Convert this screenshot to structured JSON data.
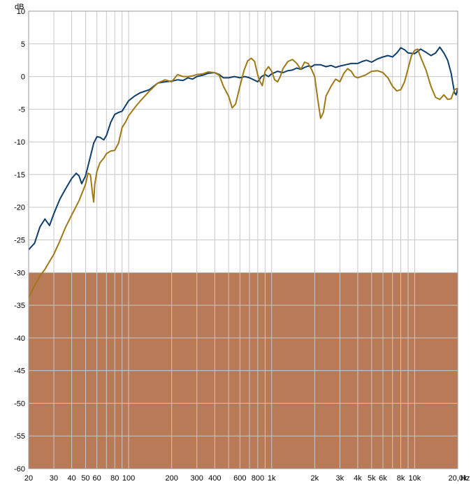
{
  "chart_data": {
    "type": "line",
    "x_scale": "log",
    "x_unit": "Hz",
    "y_unit": "dB",
    "xlim": [
      20,
      20000
    ],
    "ylim": [
      -60,
      10
    ],
    "grid": true,
    "y_ticks": [
      10,
      5,
      0,
      -5,
      -10,
      -15,
      -20,
      -25,
      -30,
      -35,
      -40,
      -45,
      -50,
      -55,
      -60
    ],
    "x_ticks": [
      {
        "value": 20,
        "label": "20"
      },
      {
        "value": 30,
        "label": "30"
      },
      {
        "value": 40,
        "label": "40"
      },
      {
        "value": 50,
        "label": "50"
      },
      {
        "value": 60,
        "label": "60"
      },
      {
        "value": 80,
        "label": "80"
      },
      {
        "value": 100,
        "label": "100"
      },
      {
        "value": 200,
        "label": "200"
      },
      {
        "value": 300,
        "label": "300"
      },
      {
        "value": 400,
        "label": "400"
      },
      {
        "value": 600,
        "label": "600"
      },
      {
        "value": 800,
        "label": "800"
      },
      {
        "value": 1000,
        "label": "1k"
      },
      {
        "value": 2000,
        "label": "2k"
      },
      {
        "value": 3000,
        "label": "3k"
      },
      {
        "value": 4000,
        "label": "4k"
      },
      {
        "value": 5000,
        "label": "5k"
      },
      {
        "value": 6000,
        "label": "6k"
      },
      {
        "value": 8000,
        "label": "8k"
      },
      {
        "value": 10000,
        "label": "10k"
      },
      {
        "value": 20000,
        "label": "20,0k"
      }
    ],
    "minor_x_gridlines": [
      70,
      90,
      500,
      700,
      900,
      7000,
      9000
    ],
    "shaded_region": {
      "y_from": -60,
      "y_to": -30,
      "color": "#b97a57"
    },
    "series": [
      {
        "color": "#0e3f6e",
        "points": [
          [
            20,
            -26.5
          ],
          [
            22,
            -25.5
          ],
          [
            24,
            -23
          ],
          [
            26,
            -21.8
          ],
          [
            28,
            -22.8
          ],
          [
            30,
            -21
          ],
          [
            33,
            -18.8
          ],
          [
            36,
            -17.3
          ],
          [
            40,
            -15.6
          ],
          [
            43,
            -14.8
          ],
          [
            45,
            -15.2
          ],
          [
            47,
            -16.4
          ],
          [
            50,
            -15.2
          ],
          [
            53,
            -13
          ],
          [
            57,
            -10.2
          ],
          [
            60,
            -9.2
          ],
          [
            63,
            -9.3
          ],
          [
            67,
            -9.7
          ],
          [
            70,
            -9
          ],
          [
            75,
            -7
          ],
          [
            80,
            -5.8
          ],
          [
            85,
            -5.5
          ],
          [
            90,
            -5.3
          ],
          [
            100,
            -3.7
          ],
          [
            110,
            -3
          ],
          [
            120,
            -2.5
          ],
          [
            140,
            -2
          ],
          [
            160,
            -1
          ],
          [
            180,
            -0.8
          ],
          [
            200,
            -0.7
          ],
          [
            220,
            -0.5
          ],
          [
            240,
            -0.6
          ],
          [
            260,
            -0.2
          ],
          [
            280,
            -0.4
          ],
          [
            300,
            0
          ],
          [
            330,
            0.2
          ],
          [
            360,
            0.5
          ],
          [
            400,
            0.6
          ],
          [
            430,
            0.3
          ],
          [
            460,
            -0.2
          ],
          [
            500,
            -0.2
          ],
          [
            550,
            0
          ],
          [
            600,
            -0.2
          ],
          [
            650,
            0
          ],
          [
            700,
            -0.2
          ],
          [
            750,
            -0.5
          ],
          [
            800,
            -0.8
          ],
          [
            850,
            0
          ],
          [
            900,
            0.3
          ],
          [
            950,
            0
          ],
          [
            1000,
            0.4
          ],
          [
            1100,
            0.8
          ],
          [
            1200,
            0.6
          ],
          [
            1300,
            0.9
          ],
          [
            1400,
            1
          ],
          [
            1500,
            1.3
          ],
          [
            1600,
            1.1
          ],
          [
            1700,
            1.4
          ],
          [
            1800,
            1.6
          ],
          [
            1900,
            1.5
          ],
          [
            2000,
            1.8
          ],
          [
            2200,
            1.8
          ],
          [
            2400,
            1.5
          ],
          [
            2600,
            1.7
          ],
          [
            2800,
            1.4
          ],
          [
            3000,
            1.6
          ],
          [
            3300,
            1.8
          ],
          [
            3600,
            2
          ],
          [
            4000,
            2
          ],
          [
            4300,
            2.3
          ],
          [
            4600,
            2.5
          ],
          [
            5000,
            2.2
          ],
          [
            5500,
            2.7
          ],
          [
            6000,
            3
          ],
          [
            6500,
            3.2
          ],
          [
            7000,
            3
          ],
          [
            7500,
            3.6
          ],
          [
            8000,
            4.4
          ],
          [
            8500,
            4.1
          ],
          [
            9000,
            3.6
          ],
          [
            10000,
            3.5
          ],
          [
            11000,
            4.2
          ],
          [
            12000,
            3.7
          ],
          [
            13000,
            3.2
          ],
          [
            14000,
            3.6
          ],
          [
            15000,
            4.5
          ],
          [
            16000,
            3.6
          ],
          [
            17000,
            2.5
          ],
          [
            18000,
            0.5
          ],
          [
            19000,
            -2.5
          ],
          [
            19500,
            -2.8
          ],
          [
            20000,
            -1.8
          ]
        ]
      },
      {
        "color": "#a07816",
        "points": [
          [
            20,
            -33.8
          ],
          [
            22,
            -32
          ],
          [
            24,
            -30.5
          ],
          [
            26,
            -29.5
          ],
          [
            28,
            -28.3
          ],
          [
            30,
            -27.2
          ],
          [
            33,
            -25.2
          ],
          [
            36,
            -23.2
          ],
          [
            40,
            -21.2
          ],
          [
            45,
            -19
          ],
          [
            50,
            -16.5
          ],
          [
            52,
            -14.8
          ],
          [
            54,
            -15
          ],
          [
            56,
            -18
          ],
          [
            57,
            -19.2
          ],
          [
            58,
            -16.5
          ],
          [
            60,
            -14.5
          ],
          [
            63,
            -13.2
          ],
          [
            67,
            -12.5
          ],
          [
            70,
            -11.8
          ],
          [
            75,
            -11.4
          ],
          [
            80,
            -11.3
          ],
          [
            85,
            -10.2
          ],
          [
            90,
            -7.8
          ],
          [
            95,
            -7
          ],
          [
            100,
            -6
          ],
          [
            110,
            -4.8
          ],
          [
            120,
            -3.8
          ],
          [
            140,
            -2.2
          ],
          [
            160,
            -1
          ],
          [
            180,
            -0.5
          ],
          [
            200,
            -0.8
          ],
          [
            220,
            0.3
          ],
          [
            240,
            0
          ],
          [
            260,
            0
          ],
          [
            280,
            0.1
          ],
          [
            300,
            0.3
          ],
          [
            330,
            0.4
          ],
          [
            360,
            0.7
          ],
          [
            400,
            0.6
          ],
          [
            430,
            0.2
          ],
          [
            460,
            -1.5
          ],
          [
            500,
            -3
          ],
          [
            530,
            -4.8
          ],
          [
            560,
            -4.2
          ],
          [
            600,
            -1.5
          ],
          [
            640,
            0.9
          ],
          [
            680,
            2.4
          ],
          [
            720,
            2.8
          ],
          [
            760,
            2.3
          ],
          [
            800,
            0.2
          ],
          [
            830,
            -0.8
          ],
          [
            860,
            -1.4
          ],
          [
            900,
            0.8
          ],
          [
            950,
            1.5
          ],
          [
            1000,
            0.8
          ],
          [
            1050,
            -0.5
          ],
          [
            1100,
            -0.8
          ],
          [
            1150,
            0
          ],
          [
            1200,
            1.2
          ],
          [
            1300,
            2.3
          ],
          [
            1400,
            2.6
          ],
          [
            1500,
            2
          ],
          [
            1600,
            1.1
          ],
          [
            1700,
            2.2
          ],
          [
            1800,
            2
          ],
          [
            1900,
            1.1
          ],
          [
            2000,
            0
          ],
          [
            2100,
            -3.5
          ],
          [
            2200,
            -6.4
          ],
          [
            2300,
            -5.5
          ],
          [
            2400,
            -3
          ],
          [
            2600,
            -1.5
          ],
          [
            2800,
            -0.4
          ],
          [
            3000,
            -0.8
          ],
          [
            3200,
            0.5
          ],
          [
            3400,
            1.2
          ],
          [
            3600,
            0.8
          ],
          [
            3800,
            0
          ],
          [
            4000,
            -0.2
          ],
          [
            4500,
            0.2
          ],
          [
            5000,
            0.8
          ],
          [
            5500,
            0.9
          ],
          [
            6000,
            0.6
          ],
          [
            6500,
            -0.2
          ],
          [
            7000,
            -1.5
          ],
          [
            7500,
            -2.2
          ],
          [
            8000,
            -2
          ],
          [
            8500,
            -0.8
          ],
          [
            9000,
            1.2
          ],
          [
            9500,
            3.2
          ],
          [
            10000,
            4
          ],
          [
            10500,
            4.2
          ],
          [
            11000,
            3
          ],
          [
            12000,
            1
          ],
          [
            13000,
            -1.5
          ],
          [
            14000,
            -3.2
          ],
          [
            15000,
            -3.5
          ],
          [
            16000,
            -2.8
          ],
          [
            17000,
            -3.5
          ],
          [
            18000,
            -3.4
          ],
          [
            19000,
            -2
          ],
          [
            20000,
            -1.8
          ]
        ]
      }
    ]
  }
}
